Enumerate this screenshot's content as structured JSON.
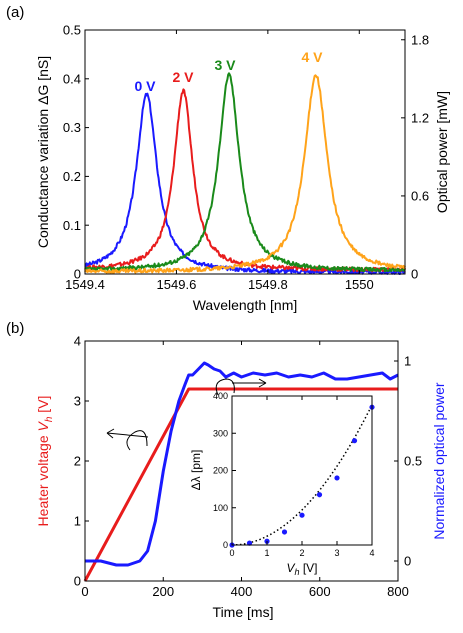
{
  "chart_data": [
    {
      "panel_label": "(a)",
      "type": "line",
      "xlabel": "Wavelength [nm]",
      "ylabel": "Conductance variation ΔG [nS]",
      "y2label": "Optical power [mW]",
      "xlim": [
        1549.4,
        1550.1
      ],
      "ylim": [
        0,
        0.5
      ],
      "y2lim": [
        0,
        1.875
      ],
      "x_ticks": [
        "1549.4",
        "1549.6",
        "1549.8",
        "1550"
      ],
      "y_ticks": [
        "0",
        "0.1",
        "0.2",
        "0.3",
        "0.4",
        "0.5"
      ],
      "y2_ticks": [
        "0",
        "0.6",
        "1.2",
        "1.8"
      ],
      "grid": false,
      "series": [
        {
          "name": "0 V",
          "color": "#1a1aff",
          "peak_x": 1549.535,
          "peak_y": 0.368,
          "width": 0.055,
          "floor": 0.003
        },
        {
          "name": "2 V",
          "color": "#e81c1c",
          "peak_x": 1549.615,
          "peak_y": 0.375,
          "width": 0.05,
          "floor": 0.008
        },
        {
          "name": "3 V",
          "color": "#1a8a1a",
          "peak_x": 1549.715,
          "peak_y": 0.408,
          "width": 0.055,
          "floor": 0.006
        },
        {
          "name": "4 V",
          "color": "#ffa31a",
          "peak_x": 1549.905,
          "peak_y": 0.408,
          "width": 0.06,
          "floor": 0.004
        }
      ]
    },
    {
      "panel_label": "(b)",
      "type": "line",
      "xlabel": "Time [ms]",
      "ylabel": "Heater voltage Vh [V]",
      "y2label": "Normalized optical power",
      "xlim": [
        0,
        800
      ],
      "ylim": [
        0,
        4
      ],
      "y2lim": [
        -0.1,
        1.1
      ],
      "x_ticks": [
        "0",
        "200",
        "400",
        "600",
        "800"
      ],
      "y_ticks": [
        "0",
        "1",
        "2",
        "3",
        "4"
      ],
      "y2_ticks": [
        "0",
        "0.5",
        "1"
      ],
      "grid": false,
      "series": [
        {
          "name": "Heater voltage",
          "color": "#e81c1c",
          "x": [
            0,
            265,
            800
          ],
          "y": [
            0,
            3.2,
            3.2
          ]
        },
        {
          "name": "Normalized optical power",
          "color": "#1a1aff",
          "x": [
            0,
            40,
            80,
            110,
            140,
            160,
            180,
            200,
            220,
            240,
            255,
            265,
            275,
            290,
            305,
            315,
            330,
            345,
            360,
            380,
            400,
            430,
            460,
            490,
            520,
            550,
            580,
            610,
            640,
            670,
            700,
            730,
            760,
            780,
            800
          ],
          "y": [
            0.0,
            0.0,
            -0.02,
            -0.02,
            0.0,
            0.05,
            0.2,
            0.45,
            0.65,
            0.8,
            0.88,
            0.93,
            0.93,
            0.96,
            0.99,
            0.98,
            0.96,
            0.95,
            0.92,
            0.94,
            0.92,
            0.94,
            0.93,
            0.94,
            0.92,
            0.93,
            0.92,
            0.94,
            0.91,
            0.91,
            0.92,
            0.93,
            0.94,
            0.91,
            0.93
          ]
        }
      ]
    },
    {
      "panel_label": "inset",
      "type": "scatter",
      "xlabel": "Vh [V]",
      "ylabel": "Δλ [pm]",
      "xlim": [
        0,
        4
      ],
      "ylim": [
        0,
        400
      ],
      "x_ticks": [
        "0",
        "1",
        "2",
        "3",
        "4"
      ],
      "y_ticks": [
        "0",
        "100",
        "200",
        "300",
        "400"
      ],
      "grid": false,
      "points": {
        "color": "#1a1aff",
        "x": [
          0,
          0.5,
          1.0,
          1.5,
          2.0,
          2.5,
          3.0,
          3.5,
          4.0
        ],
        "y": [
          0,
          5,
          10,
          35,
          80,
          135,
          180,
          280,
          370
        ]
      },
      "fit": {
        "style": "dotted",
        "color": "#000000",
        "coef": 23.5
      }
    }
  ],
  "annotations": {
    "a_labels": [
      "0 V",
      "2 V",
      "3 V",
      "4 V"
    ],
    "b_ylabel_main": "Heater voltage ",
    "b_ylabel_sym": "V",
    "b_ylabel_sub": "h",
    "b_ylabel_unit": " [V]",
    "inset_xlabel_sym": "V",
    "inset_xlabel_sub": "h",
    "inset_xlabel_unit": " [V]"
  }
}
